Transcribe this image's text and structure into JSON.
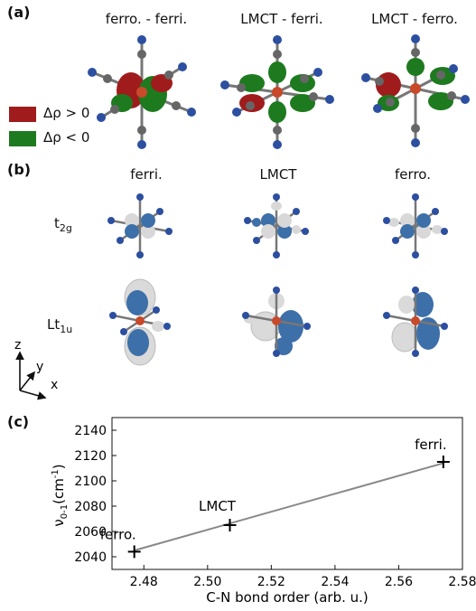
{
  "panel_a": {
    "label": "(a)",
    "columns": [
      "ferro. - ferri.",
      "LMCT - ferri.",
      "LMCT - ferro."
    ],
    "legend": [
      {
        "label": "Δρ > 0",
        "color": "#a01c1c"
      },
      {
        "label": "Δρ < 0",
        "color": "#1e7a1e"
      }
    ]
  },
  "panel_b": {
    "label": "(b)",
    "columns": [
      "ferri.",
      "LMCT",
      "ferro."
    ],
    "rows": [
      {
        "main": "t",
        "sub": "2g"
      },
      {
        "main": "Lt",
        "sub": "1u"
      }
    ],
    "axes": {
      "z": "z",
      "y": "y",
      "x": "x"
    }
  },
  "panel_c": {
    "label": "(c)"
  },
  "chart_data": {
    "type": "line",
    "ylabel_main": "ν",
    "ylabel_sub": "0-1",
    "ylabel_unit_pre": "(cm",
    "ylabel_unit_sup": "-1",
    "ylabel_unit_post": ")",
    "xlabel": "C-N bond order (arb. u.)",
    "xlim": [
      2.47,
      2.58
    ],
    "ylim": [
      2030,
      2150
    ],
    "xticks": [
      "2.48",
      "2.50",
      "2.52",
      "2.54",
      "2.56",
      "2.58"
    ],
    "yticks": [
      "2040",
      "2060",
      "2080",
      "2100",
      "2120",
      "2140"
    ],
    "points": [
      {
        "label": "ferro.",
        "x": 2.477,
        "y": 2044
      },
      {
        "label": "LMCT",
        "x": 2.507,
        "y": 2065
      },
      {
        "label": "ferri.",
        "x": 2.574,
        "y": 2115
      }
    ],
    "fit_line": {
      "x": [
        2.477,
        2.574
      ],
      "y": [
        2045,
        2114
      ]
    },
    "colors": {
      "points": "#000000",
      "line": "#888888"
    }
  }
}
